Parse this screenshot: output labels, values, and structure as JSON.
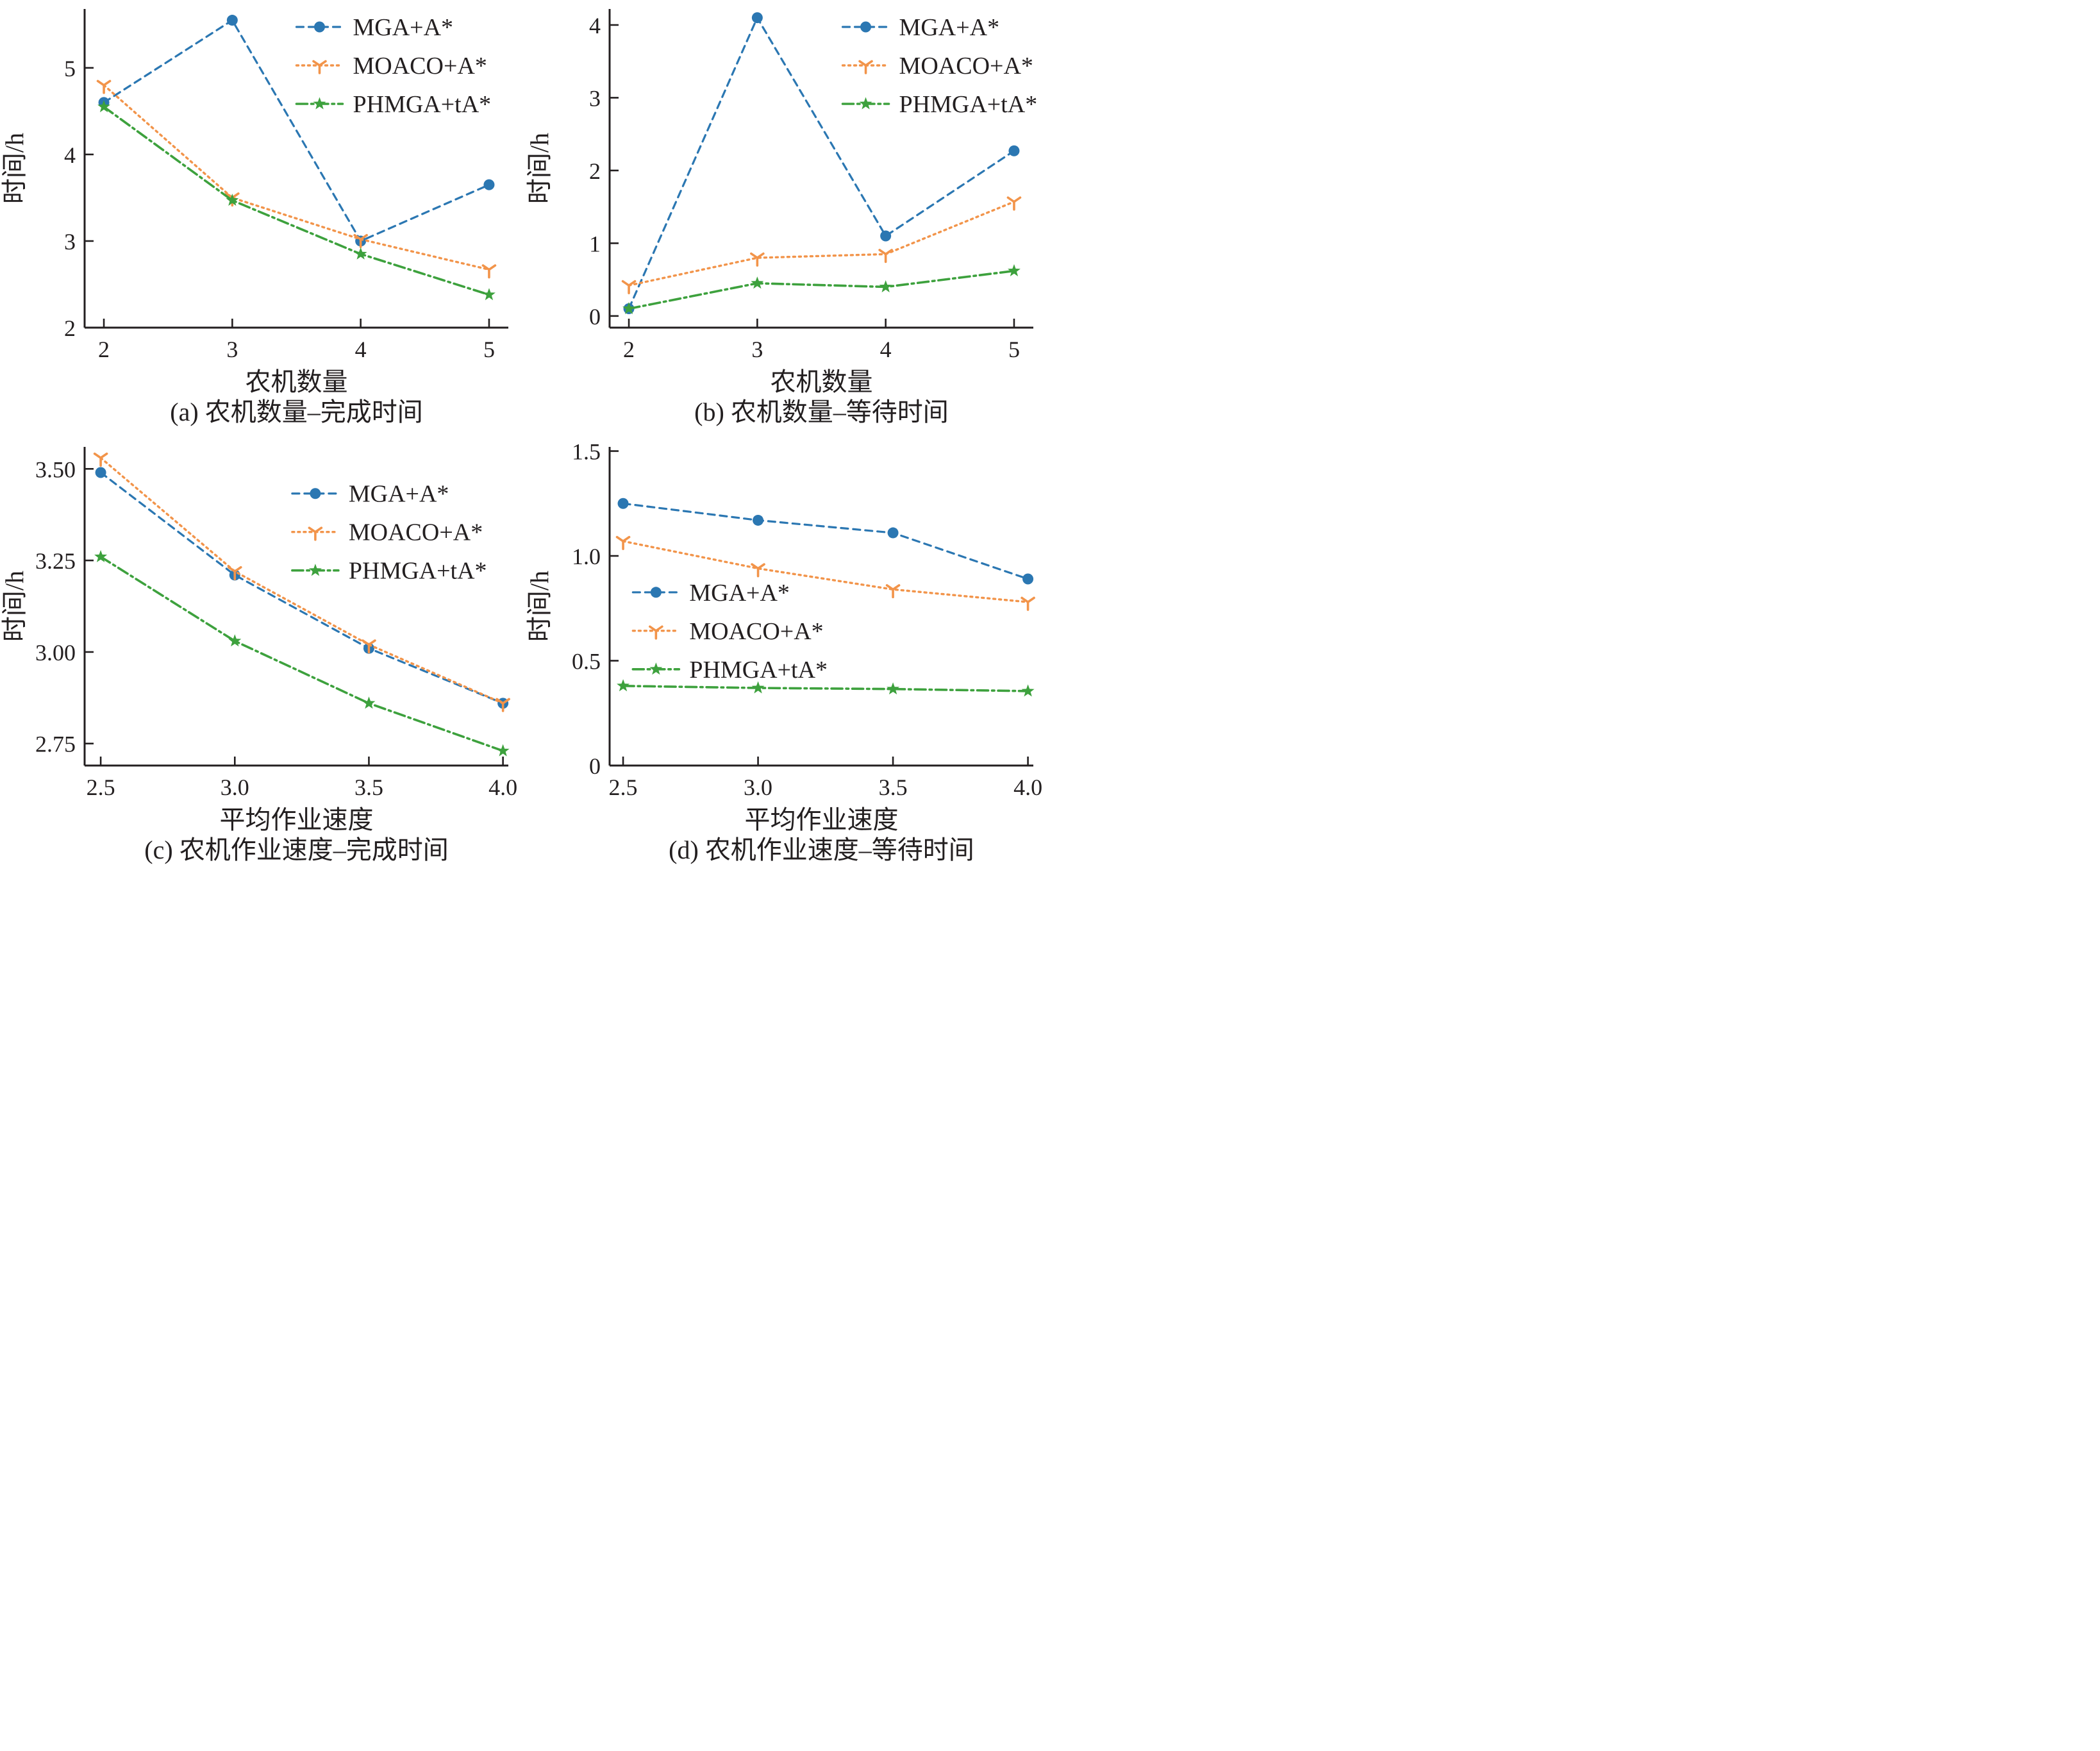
{
  "colors": {
    "mga_blue": "#2b77b2",
    "moaco_orange": "#f2944a",
    "phmga_green": "#3da13d",
    "axis_and_text": "#231f20",
    "background": "#ffffff"
  },
  "series_styles": [
    {
      "name": "MGA+A*",
      "color": "#2b77b2",
      "marker": "circle",
      "line": "dashed"
    },
    {
      "name": "MOACO+A*",
      "color": "#f2944a",
      "marker": "tri-down",
      "line": "dotted"
    },
    {
      "name": "PHMGA+tA*",
      "color": "#3da13d",
      "marker": "star",
      "line": "dashdot"
    }
  ],
  "chart_data": [
    {
      "key": "a",
      "type": "line",
      "caption": "(a) 农机数量–完成时间",
      "xlabel": "农机数量",
      "ylabel": "时间/h",
      "x": [
        2,
        3,
        4,
        5
      ],
      "xticks": [
        2,
        3,
        4,
        5
      ],
      "xtick_labels": [
        "2",
        "3",
        "4",
        "5"
      ],
      "yticks": [
        2,
        3,
        4,
        5
      ],
      "ytick_labels": [
        "2",
        "3",
        "4",
        "5"
      ],
      "xlim": [
        1.85,
        5.15
      ],
      "ylim": [
        2,
        5.68
      ],
      "grid": false,
      "legend_position": "upper-right-inside",
      "legend": {
        "x": 0.5,
        "y": 0.0
      },
      "series": [
        {
          "name": "MGA+A*",
          "values": [
            4.6,
            5.55,
            3.0,
            3.65
          ]
        },
        {
          "name": "MOACO+A*",
          "values": [
            4.8,
            3.5,
            3.02,
            2.67
          ]
        },
        {
          "name": "PHMGA+tA*",
          "values": [
            4.55,
            3.47,
            2.85,
            2.38
          ]
        }
      ]
    },
    {
      "key": "b",
      "type": "line",
      "caption": "(b) 农机数量–等待时间",
      "xlabel": "农机数量",
      "ylabel": "时间/h",
      "x": [
        2,
        3,
        4,
        5
      ],
      "xticks": [
        2,
        3,
        4,
        5
      ],
      "xtick_labels": [
        "2",
        "3",
        "4",
        "5"
      ],
      "yticks": [
        0,
        1,
        2,
        3,
        4
      ],
      "ytick_labels": [
        "0",
        "1",
        "2",
        "3",
        "4"
      ],
      "xlim": [
        1.85,
        5.15
      ],
      "ylim": [
        -0.16,
        4.22
      ],
      "grid": false,
      "legend_position": "upper-right-inside",
      "legend": {
        "x": 0.55,
        "y": 0.0
      },
      "series": [
        {
          "name": "MGA+A*",
          "values": [
            0.1,
            4.1,
            1.1,
            2.27
          ]
        },
        {
          "name": "MOACO+A*",
          "values": [
            0.42,
            0.8,
            0.85,
            1.57
          ]
        },
        {
          "name": "PHMGA+tA*",
          "values": [
            0.1,
            0.45,
            0.4,
            0.62
          ]
        }
      ]
    },
    {
      "key": "c",
      "type": "line",
      "caption": "(c) 农机作业速度–完成时间",
      "xlabel": "平均作业速度",
      "ylabel": "时间/h",
      "x": [
        2.5,
        3.0,
        3.5,
        4.0
      ],
      "xticks": [
        2.5,
        3.0,
        3.5,
        4.0
      ],
      "xtick_labels": [
        "2.5",
        "3.0",
        "3.5",
        "4.0"
      ],
      "yticks": [
        2.75,
        3.0,
        3.25,
        3.5
      ],
      "ytick_labels": [
        "2.75",
        "3.00",
        "3.25",
        "3.50"
      ],
      "xlim": [
        2.44,
        4.02
      ],
      "ylim": [
        2.69,
        3.56
      ],
      "grid": false,
      "legend_position": "upper-right-inside",
      "legend": {
        "x": 0.49,
        "y": 0.09
      },
      "series": [
        {
          "name": "MGA+A*",
          "values": [
            3.49,
            3.21,
            3.01,
            2.86
          ]
        },
        {
          "name": "MOACO+A*",
          "values": [
            3.53,
            3.22,
            3.02,
            2.86
          ]
        },
        {
          "name": "PHMGA+tA*",
          "values": [
            3.26,
            3.03,
            2.86,
            2.73
          ]
        }
      ]
    },
    {
      "key": "d",
      "type": "line",
      "caption": "(d) 农机作业速度–等待时间",
      "xlabel": "平均作业速度",
      "ylabel": "时间/h",
      "x": [
        2.5,
        3.0,
        3.5,
        4.0
      ],
      "xticks": [
        2.5,
        3.0,
        3.5,
        4.0
      ],
      "xtick_labels": [
        "2.5",
        "3.0",
        "3.5",
        "4.0"
      ],
      "yticks": [
        0,
        0.5,
        1.0,
        1.5
      ],
      "ytick_labels": [
        "0",
        "0.5",
        "1.0",
        "1.5"
      ],
      "xlim": [
        2.45,
        4.02
      ],
      "ylim": [
        0,
        1.52
      ],
      "grid": false,
      "legend_position": "middle-left-inside",
      "legend": {
        "x": 0.055,
        "y": 0.4
      },
      "series": [
        {
          "name": "MGA+A*",
          "values": [
            1.25,
            1.17,
            1.11,
            0.89
          ]
        },
        {
          "name": "MOACO+A*",
          "values": [
            1.07,
            0.94,
            0.84,
            0.78
          ]
        },
        {
          "name": "PHMGA+tA*",
          "values": [
            0.38,
            0.37,
            0.365,
            0.355
          ]
        }
      ]
    }
  ]
}
